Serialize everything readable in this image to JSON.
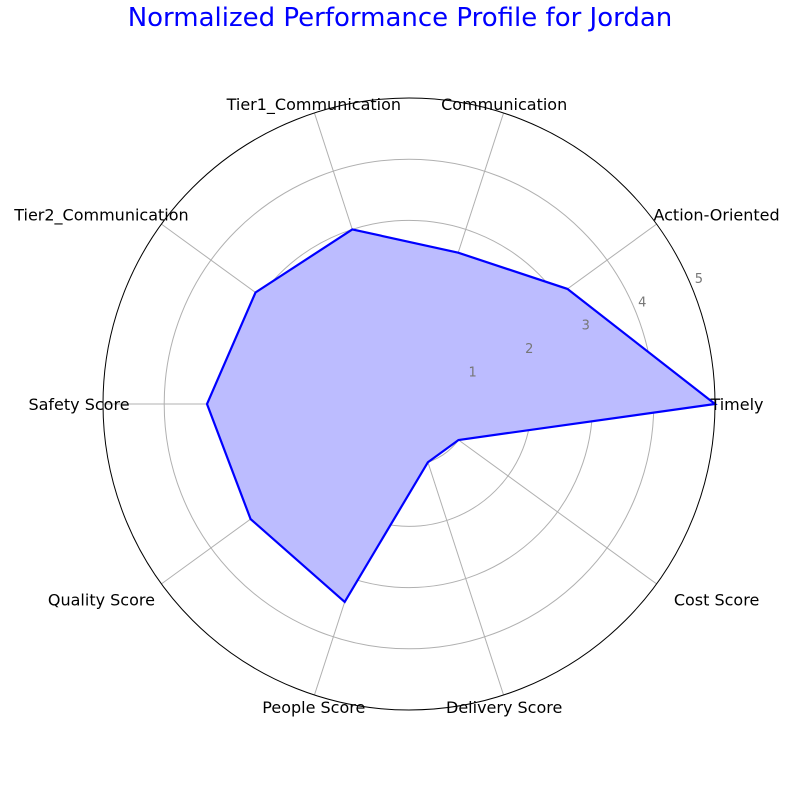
{
  "chart_data": {
    "type": "radar",
    "title": "Normalized Performance Profile for Jordan",
    "categories": [
      "Timely",
      "Action-Oriented",
      "Communication",
      "Tier1_Communication",
      "Tier2_Communication",
      "Safety Score",
      "Quality Score",
      "People Score",
      "Delivery Score",
      "Cost Score"
    ],
    "series": [
      {
        "values": [
          5.0,
          3.2,
          2.6,
          3.0,
          3.1,
          3.3,
          3.2,
          3.4,
          1.0,
          1.0
        ]
      }
    ],
    "rlim": [
      0,
      5
    ],
    "rticks": [
      "1",
      "2",
      "3",
      "4",
      "5"
    ],
    "grid": true,
    "colors": {
      "title": "#0000ff",
      "line": "#0000ff",
      "fill": "#bcbcff",
      "grid": "#b0b0b0",
      "outline": "#000000"
    }
  }
}
